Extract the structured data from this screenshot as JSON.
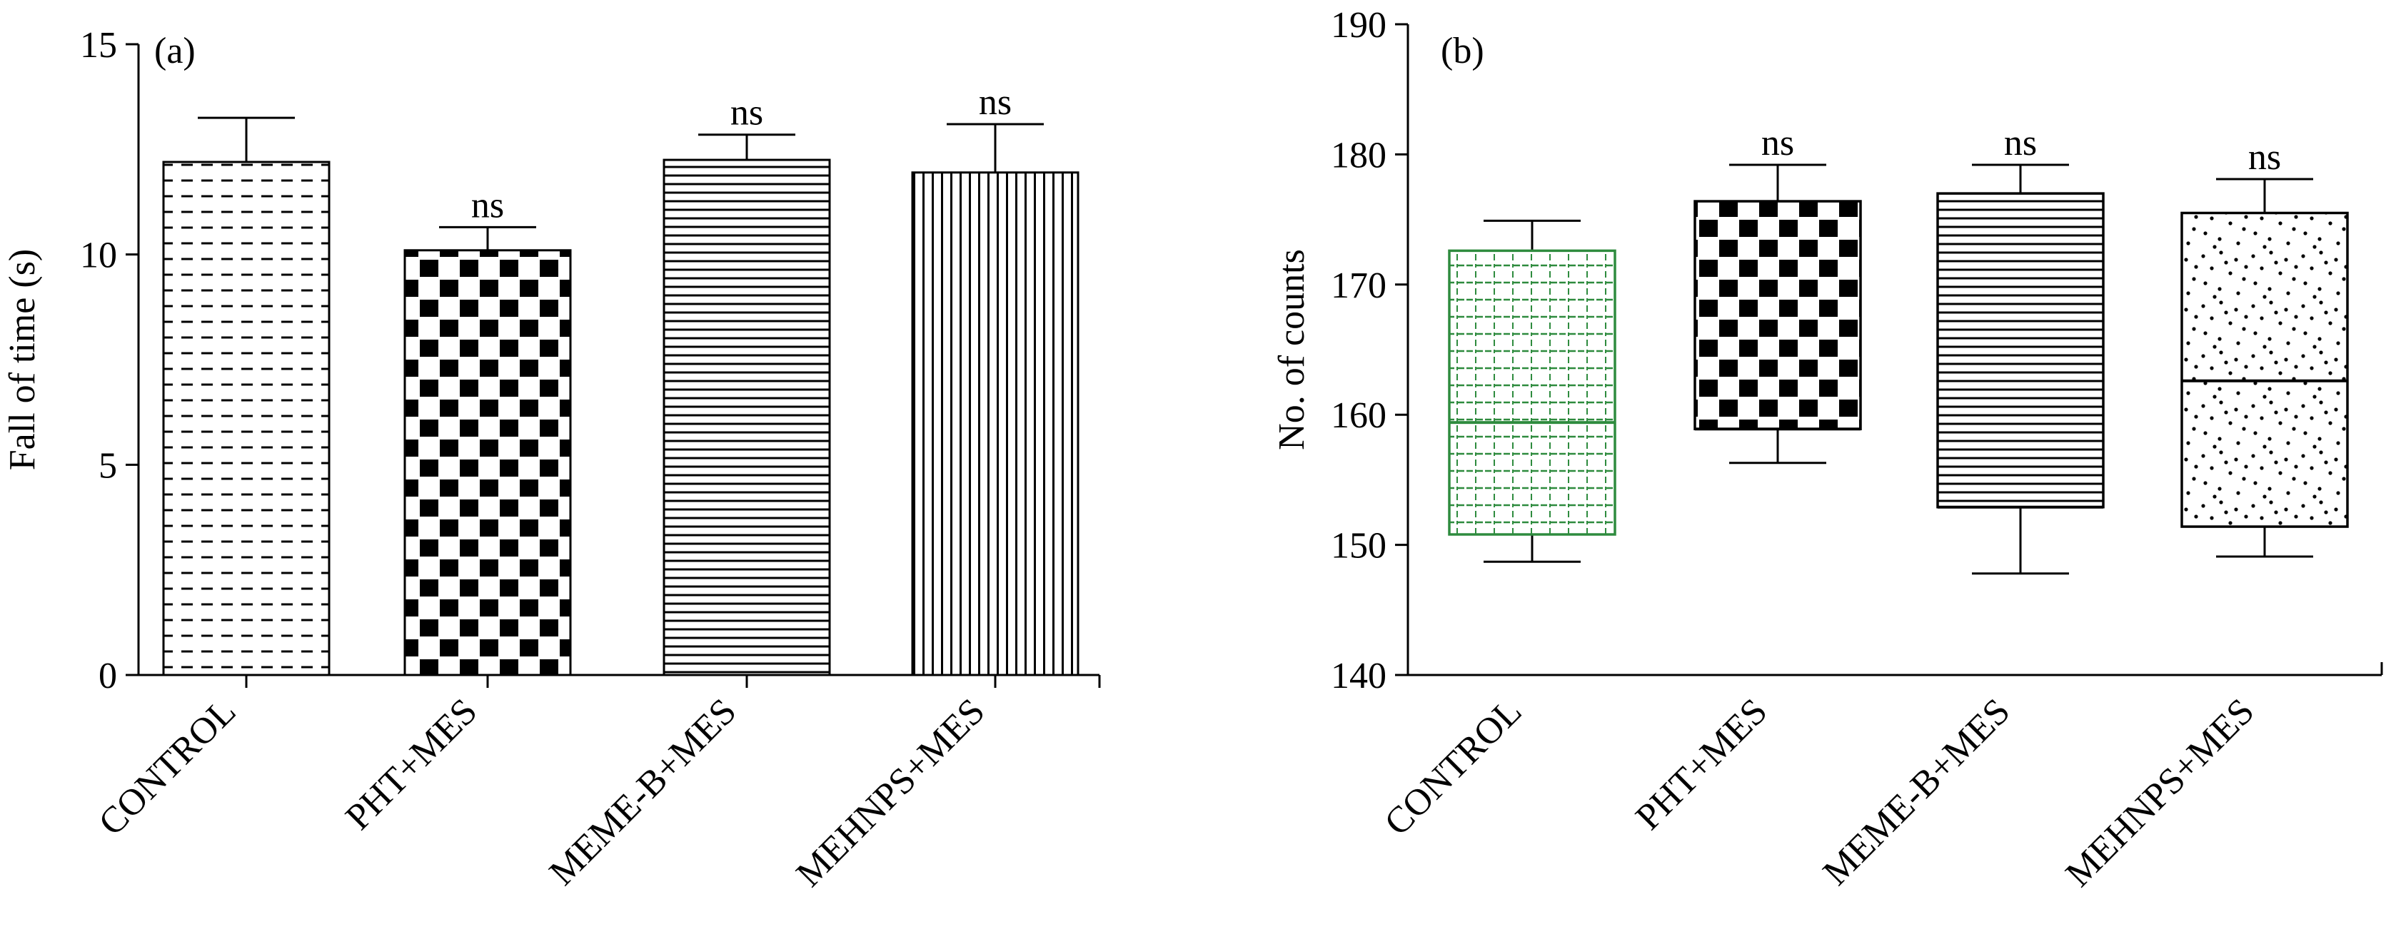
{
  "chart_data": [
    {
      "type": "bar",
      "panel_label": "(a)",
      "ylabel": "Fall of time (s)",
      "xlabel": "",
      "ylim": [
        0,
        15
      ],
      "yticks": [
        0,
        5,
        10,
        15
      ],
      "categories": [
        "CONTROL",
        "PHT+MES",
        "MEME-B+MES",
        "MEHNPS+MES"
      ],
      "values": [
        12.2,
        10.1,
        12.25,
        11.95
      ],
      "error_upper": [
        1.05,
        0.55,
        0.6,
        1.15
      ],
      "significance": [
        "",
        "ns",
        "ns",
        "ns"
      ],
      "fill_patterns": [
        "horizontal-dashes",
        "checker-squares",
        "horizontal-lines",
        "vertical-lines"
      ],
      "bar_color": "#000000",
      "grid": false
    },
    {
      "type": "box",
      "panel_label": "(b)",
      "ylabel": "No. of counts",
      "xlabel": "",
      "ylim": [
        140,
        190
      ],
      "yticks": [
        140,
        150,
        160,
        170,
        180,
        190
      ],
      "categories": [
        "CONTROL",
        "PHT+MES",
        "MEME-B+MES",
        "MEHNPS+MES"
      ],
      "boxes": [
        {
          "min": 148.7,
          "q1": 150.8,
          "median": 159.4,
          "q3": 172.6,
          "max": 174.9
        },
        {
          "min": 156.3,
          "q1": 158.9,
          "median": 158.9,
          "q3": 176.4,
          "max": 179.2
        },
        {
          "min": 147.8,
          "q1": 152.9,
          "median": 152.9,
          "q3": 177.0,
          "max": 179.2
        },
        {
          "min": 149.1,
          "q1": 151.4,
          "median": 162.6,
          "q3": 175.5,
          "max": 178.1
        }
      ],
      "significance": [
        "",
        "ns",
        "ns",
        "ns"
      ],
      "fill_patterns": [
        "green-dashed-grid",
        "checker-squares",
        "horizontal-lines",
        "random-dots"
      ],
      "box_colors": [
        "#2e8b3e",
        "#000000",
        "#000000",
        "#000000"
      ],
      "grid": false
    }
  ]
}
